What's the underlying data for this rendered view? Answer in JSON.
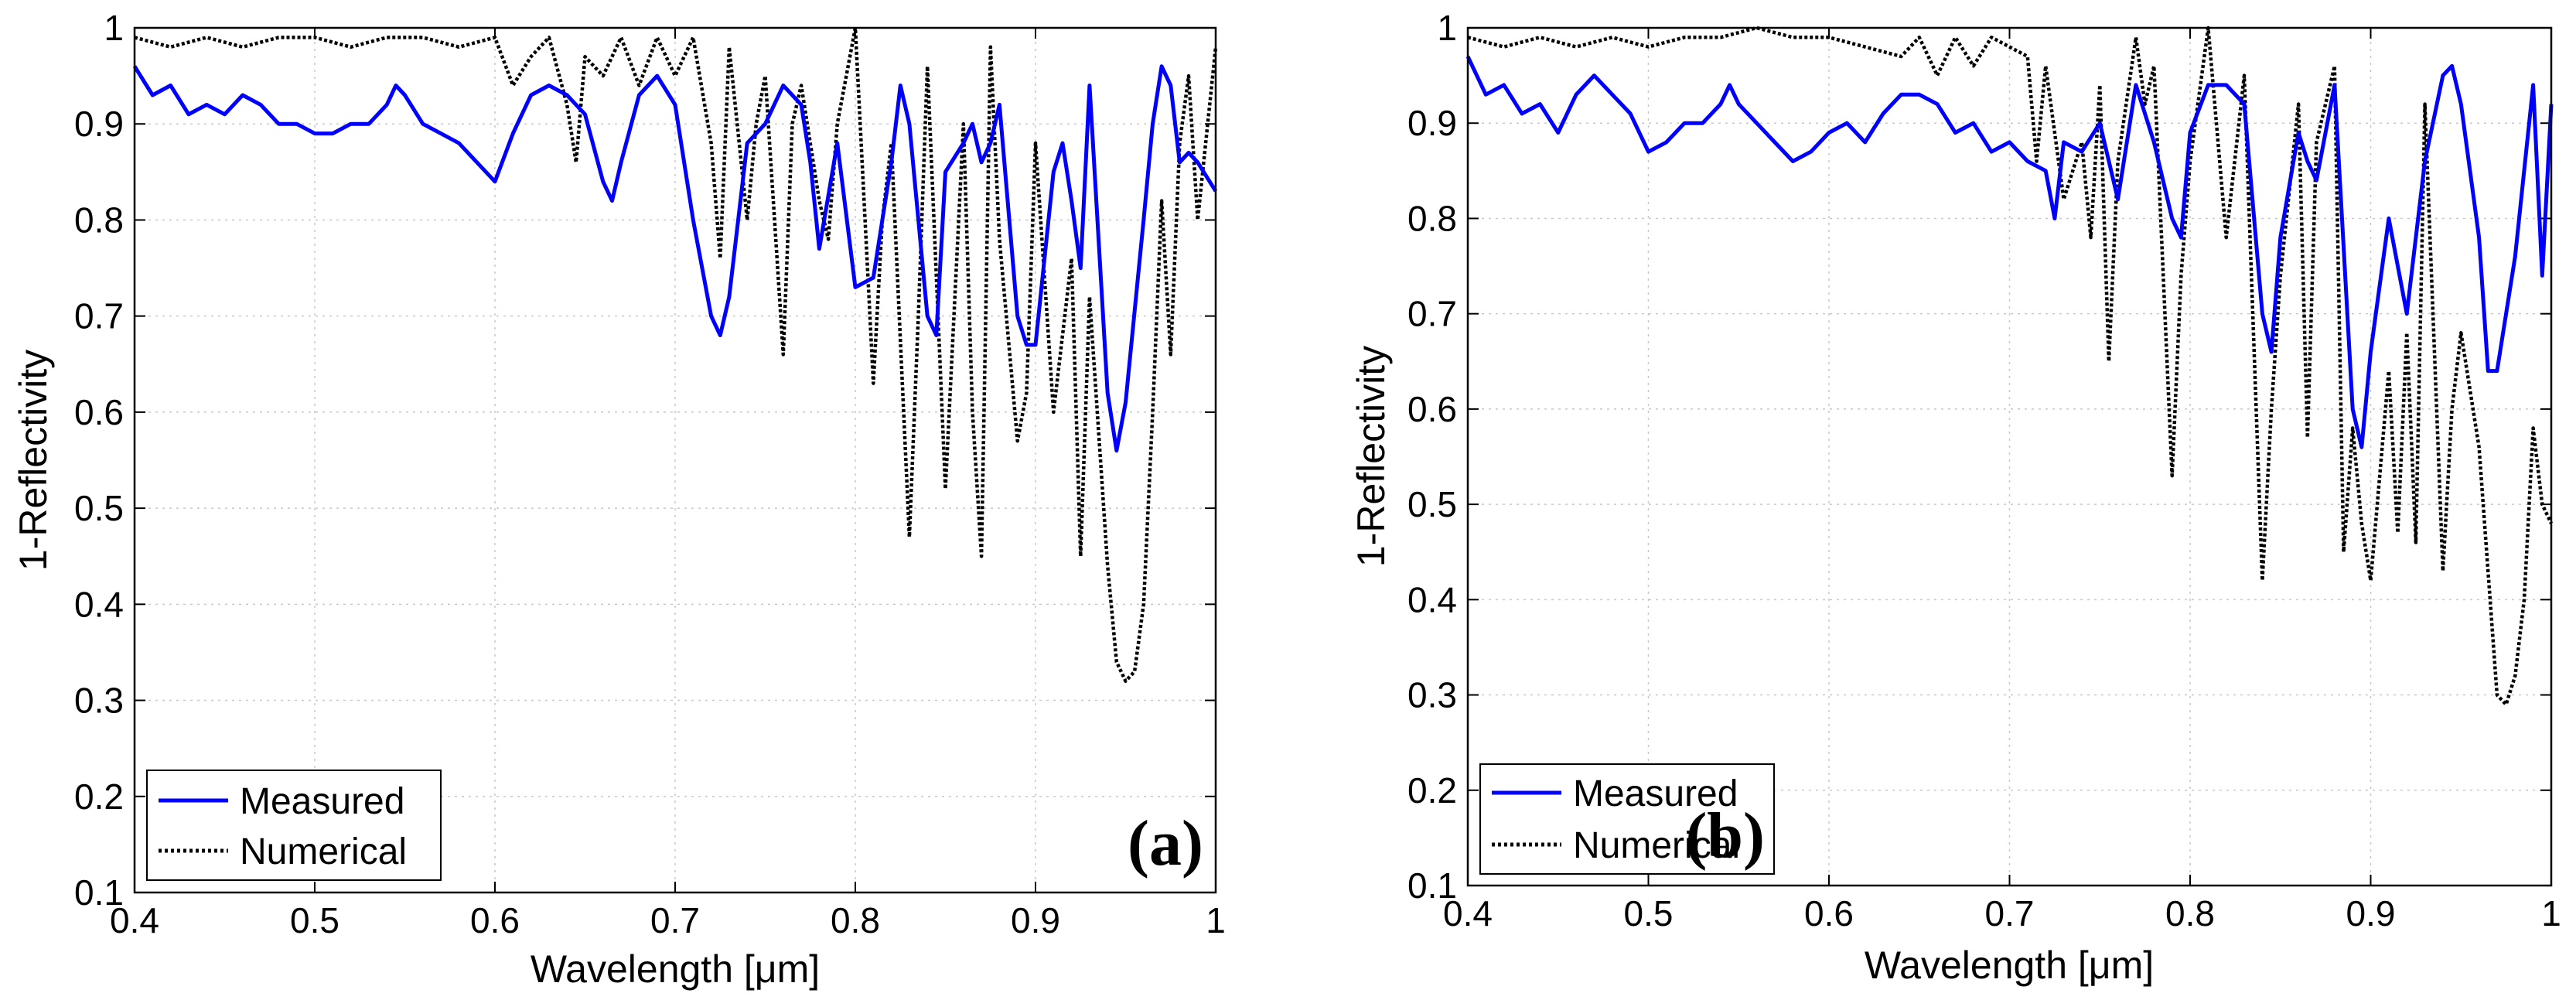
{
  "chart_data": [
    {
      "type": "line",
      "panel_label": "(a)",
      "xlabel": "Wavelength [μm]",
      "ylabel": "1-Reflectivity",
      "xlim": [
        0.4,
        1.0
      ],
      "ylim": [
        0.1,
        1.0
      ],
      "xticks": [
        "0.4",
        "0.5",
        "0.6",
        "0.7",
        "0.8",
        "0.9",
        "1"
      ],
      "yticks": [
        "0.1",
        "0.2",
        "0.3",
        "0.4",
        "0.5",
        "0.6",
        "0.7",
        "0.8",
        "0.9",
        "1"
      ],
      "grid": true,
      "legend_position": "bottom-left",
      "series": [
        {
          "name": "Measured",
          "color": "#0000ff",
          "style": "solid",
          "x": [
            0.4,
            0.41,
            0.42,
            0.43,
            0.44,
            0.45,
            0.46,
            0.47,
            0.48,
            0.49,
            0.5,
            0.51,
            0.52,
            0.53,
            0.54,
            0.545,
            0.55,
            0.56,
            0.57,
            0.58,
            0.59,
            0.6,
            0.61,
            0.62,
            0.63,
            0.64,
            0.65,
            0.66,
            0.665,
            0.67,
            0.68,
            0.69,
            0.7,
            0.71,
            0.72,
            0.725,
            0.73,
            0.74,
            0.75,
            0.76,
            0.77,
            0.775,
            0.78,
            0.79,
            0.8,
            0.81,
            0.82,
            0.825,
            0.83,
            0.84,
            0.845,
            0.85,
            0.86,
            0.865,
            0.87,
            0.875,
            0.88,
            0.89,
            0.895,
            0.9,
            0.91,
            0.915,
            0.92,
            0.925,
            0.93,
            0.94,
            0.945,
            0.95,
            0.96,
            0.965,
            0.97,
            0.975,
            0.98,
            0.985,
            0.99,
            1.0
          ],
          "y": [
            0.96,
            0.93,
            0.94,
            0.91,
            0.92,
            0.91,
            0.93,
            0.92,
            0.9,
            0.9,
            0.89,
            0.89,
            0.9,
            0.9,
            0.92,
            0.94,
            0.93,
            0.9,
            0.89,
            0.88,
            0.86,
            0.84,
            0.89,
            0.93,
            0.94,
            0.93,
            0.91,
            0.84,
            0.82,
            0.86,
            0.93,
            0.95,
            0.92,
            0.8,
            0.7,
            0.68,
            0.72,
            0.88,
            0.9,
            0.94,
            0.92,
            0.86,
            0.77,
            0.88,
            0.73,
            0.74,
            0.86,
            0.94,
            0.9,
            0.7,
            0.68,
            0.85,
            0.88,
            0.9,
            0.86,
            0.88,
            0.92,
            0.7,
            0.67,
            0.67,
            0.85,
            0.88,
            0.82,
            0.75,
            0.94,
            0.62,
            0.56,
            0.61,
            0.8,
            0.9,
            0.96,
            0.94,
            0.86,
            0.87,
            0.86,
            0.83
          ]
        },
        {
          "name": "Numerical",
          "color": "#000000",
          "style": "dotted",
          "x": [
            0.4,
            0.42,
            0.44,
            0.46,
            0.48,
            0.5,
            0.52,
            0.54,
            0.56,
            0.58,
            0.6,
            0.61,
            0.62,
            0.63,
            0.64,
            0.645,
            0.65,
            0.66,
            0.67,
            0.68,
            0.69,
            0.7,
            0.71,
            0.72,
            0.725,
            0.73,
            0.74,
            0.745,
            0.75,
            0.76,
            0.765,
            0.77,
            0.78,
            0.785,
            0.79,
            0.8,
            0.81,
            0.815,
            0.82,
            0.83,
            0.835,
            0.84,
            0.85,
            0.86,
            0.865,
            0.87,
            0.875,
            0.88,
            0.89,
            0.895,
            0.9,
            0.91,
            0.92,
            0.925,
            0.93,
            0.94,
            0.945,
            0.95,
            0.955,
            0.96,
            0.965,
            0.97,
            0.975,
            0.98,
            0.985,
            0.99,
            1.0
          ],
          "y": [
            0.99,
            0.98,
            0.99,
            0.98,
            0.99,
            0.99,
            0.98,
            0.99,
            0.99,
            0.98,
            0.99,
            0.94,
            0.97,
            0.99,
            0.92,
            0.86,
            0.97,
            0.95,
            0.99,
            0.94,
            0.99,
            0.95,
            0.99,
            0.88,
            0.76,
            0.98,
            0.8,
            0.9,
            0.95,
            0.66,
            0.9,
            0.94,
            0.82,
            0.78,
            0.9,
            1.0,
            0.63,
            0.8,
            0.88,
            0.47,
            0.7,
            0.96,
            0.52,
            0.9,
            0.6,
            0.45,
            0.98,
            0.78,
            0.57,
            0.62,
            0.88,
            0.6,
            0.76,
            0.45,
            0.72,
            0.44,
            0.34,
            0.32,
            0.33,
            0.4,
            0.6,
            0.82,
            0.66,
            0.88,
            0.95,
            0.8,
            0.98
          ]
        }
      ]
    },
    {
      "type": "line",
      "panel_label": "(b)",
      "xlabel": "Wavelength [μm]",
      "ylabel": "1-Reflectivity",
      "xlim": [
        0.4,
        1.0
      ],
      "ylim": [
        0.1,
        1.0
      ],
      "xticks": [
        "0.4",
        "0.5",
        "0.6",
        "0.7",
        "0.8",
        "0.9",
        "1"
      ],
      "yticks": [
        "0.1",
        "0.2",
        "0.3",
        "0.4",
        "0.5",
        "0.6",
        "0.7",
        "0.8",
        "0.9",
        "1"
      ],
      "grid": true,
      "legend_position": "bottom-left",
      "series": [
        {
          "name": "Measured",
          "color": "#0000ff",
          "style": "solid",
          "x": [
            0.4,
            0.41,
            0.42,
            0.43,
            0.44,
            0.45,
            0.46,
            0.47,
            0.48,
            0.49,
            0.5,
            0.51,
            0.52,
            0.53,
            0.54,
            0.545,
            0.55,
            0.56,
            0.57,
            0.58,
            0.59,
            0.6,
            0.61,
            0.62,
            0.63,
            0.64,
            0.65,
            0.66,
            0.67,
            0.68,
            0.69,
            0.7,
            0.71,
            0.72,
            0.725,
            0.73,
            0.74,
            0.75,
            0.76,
            0.77,
            0.78,
            0.79,
            0.795,
            0.8,
            0.81,
            0.82,
            0.83,
            0.84,
            0.845,
            0.85,
            0.86,
            0.865,
            0.87,
            0.88,
            0.89,
            0.895,
            0.9,
            0.91,
            0.92,
            0.93,
            0.94,
            0.945,
            0.95,
            0.96,
            0.965,
            0.97,
            0.98,
            0.99,
            0.995,
            1.0
          ],
          "y": [
            0.97,
            0.93,
            0.94,
            0.91,
            0.92,
            0.89,
            0.93,
            0.95,
            0.93,
            0.91,
            0.87,
            0.88,
            0.9,
            0.9,
            0.92,
            0.94,
            0.92,
            0.9,
            0.88,
            0.86,
            0.87,
            0.89,
            0.9,
            0.88,
            0.91,
            0.93,
            0.93,
            0.92,
            0.89,
            0.9,
            0.87,
            0.88,
            0.86,
            0.85,
            0.8,
            0.88,
            0.87,
            0.9,
            0.82,
            0.94,
            0.88,
            0.8,
            0.78,
            0.89,
            0.94,
            0.94,
            0.92,
            0.7,
            0.66,
            0.78,
            0.89,
            0.86,
            0.84,
            0.94,
            0.6,
            0.56,
            0.66,
            0.8,
            0.7,
            0.86,
            0.95,
            0.96,
            0.92,
            0.78,
            0.64,
            0.64,
            0.76,
            0.94,
            0.74,
            0.92
          ]
        },
        {
          "name": "Numerical",
          "color": "#000000",
          "style": "dotted",
          "x": [
            0.4,
            0.42,
            0.44,
            0.46,
            0.48,
            0.5,
            0.52,
            0.54,
            0.56,
            0.58,
            0.6,
            0.62,
            0.64,
            0.65,
            0.66,
            0.67,
            0.68,
            0.69,
            0.7,
            0.71,
            0.715,
            0.72,
            0.73,
            0.74,
            0.745,
            0.75,
            0.755,
            0.76,
            0.77,
            0.775,
            0.78,
            0.79,
            0.795,
            0.8,
            0.81,
            0.82,
            0.83,
            0.84,
            0.845,
            0.85,
            0.86,
            0.865,
            0.87,
            0.88,
            0.885,
            0.89,
            0.895,
            0.9,
            0.91,
            0.915,
            0.92,
            0.925,
            0.93,
            0.94,
            0.945,
            0.95,
            0.96,
            0.97,
            0.975,
            0.98,
            0.985,
            0.99,
            0.995,
            1.0
          ],
          "y": [
            0.99,
            0.98,
            0.99,
            0.98,
            0.99,
            0.98,
            0.99,
            0.99,
            1.0,
            0.99,
            0.99,
            0.98,
            0.97,
            0.99,
            0.95,
            0.99,
            0.96,
            0.99,
            0.98,
            0.97,
            0.86,
            0.96,
            0.82,
            0.88,
            0.78,
            0.94,
            0.65,
            0.86,
            0.99,
            0.92,
            0.96,
            0.53,
            0.74,
            0.86,
            1.0,
            0.78,
            0.95,
            0.42,
            0.6,
            0.74,
            0.92,
            0.57,
            0.88,
            0.96,
            0.45,
            0.58,
            0.48,
            0.42,
            0.64,
            0.47,
            0.68,
            0.46,
            0.92,
            0.43,
            0.6,
            0.68,
            0.56,
            0.3,
            0.29,
            0.32,
            0.4,
            0.58,
            0.5,
            0.48
          ]
        }
      ]
    }
  ]
}
